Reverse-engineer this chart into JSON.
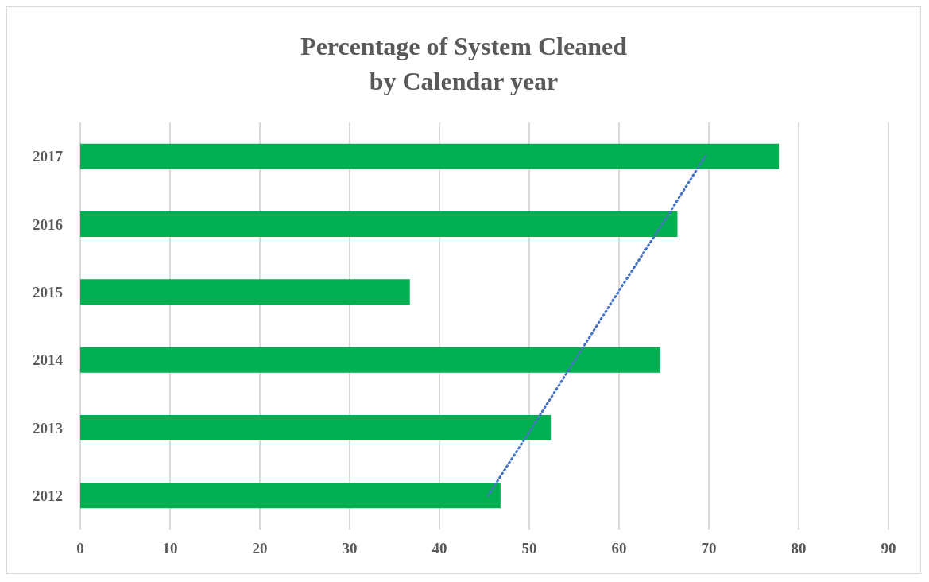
{
  "chart_data": {
    "type": "bar",
    "orientation": "horizontal",
    "title": "Percentage of System Cleaned\nby Calendar year",
    "categories": [
      "2017",
      "2016",
      "2015",
      "2014",
      "2013",
      "2012"
    ],
    "series": [
      {
        "color": "#00b050",
        "values": [
          77.8,
          66.5,
          36.7,
          64.6,
          52.4,
          46.8
        ]
      },
      {
        "type": "line",
        "color": "#4472c4",
        "line_style": "dotted",
        "marker": "none",
        "values": [
          69.6,
          64.8,
          59.9,
          55.1,
          50.3,
          45.4
        ]
      }
    ],
    "xlim": [
      0,
      90
    ],
    "xticks": [
      0,
      10,
      20,
      30,
      40,
      50,
      60,
      70,
      80,
      90
    ],
    "grid": "x"
  }
}
